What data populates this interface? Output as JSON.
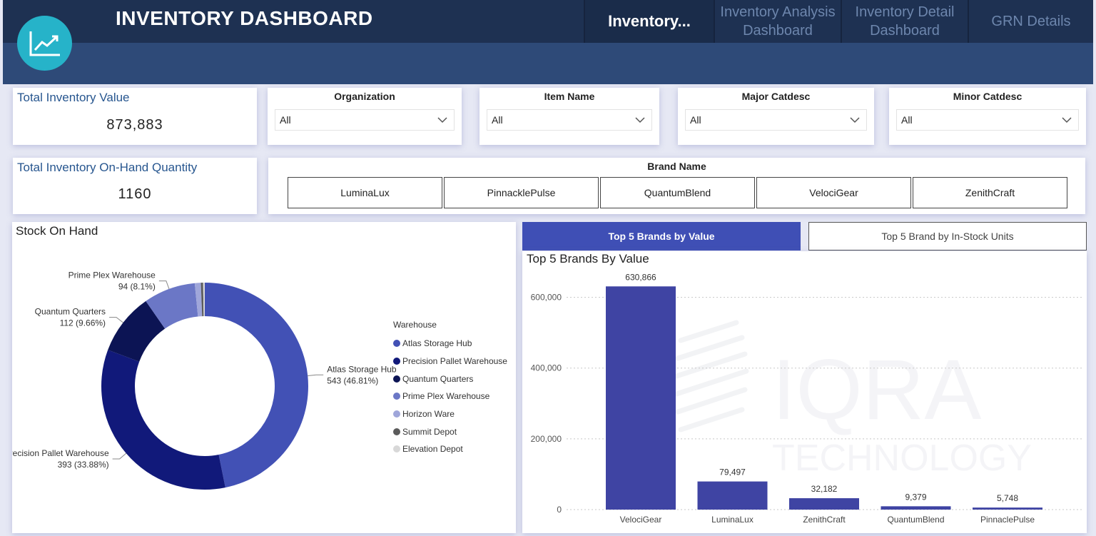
{
  "header": {
    "title": "INVENTORY DASHBOARD",
    "nav": {
      "active": "Inventory...",
      "item1_line1": "Inventory Analysis",
      "item1_line2": "Dashboard",
      "item2_line1": "Inventory Detail",
      "item2_line2": "Dashboard",
      "item3": "GRN Details"
    }
  },
  "kpis": {
    "total_value_label": "Total Inventory Value",
    "total_value": "873,883",
    "on_hand_label": "Total Inventory On-Hand Quantity",
    "on_hand": "1160"
  },
  "slicers": {
    "organization": {
      "title": "Organization",
      "value": "All"
    },
    "item_name": {
      "title": "Item Name",
      "value": "All"
    },
    "major_catdesc": {
      "title": "Major Catdesc",
      "value": "All"
    },
    "minor_catdesc": {
      "title": "Minor Catdesc",
      "value": "All"
    }
  },
  "brand_slicer": {
    "title": "Brand Name",
    "brands": [
      "LuminaLux",
      "PinnacklePulse",
      "QuantumBlend",
      "VelociGear",
      "ZenithCraft"
    ]
  },
  "toggle_tabs": {
    "active": "Top 5 Brands by Value",
    "inactive": "Top 5 Brand by In-Stock Units"
  },
  "watermark": {
    "line1": "IQRA",
    "line2": "TECHNOLOGY"
  },
  "colors": {
    "header_dark": "#1e3152",
    "header_light": "#2e4a78",
    "accent": "#3f4fb5",
    "logo": "#26b3c9"
  },
  "chart_data": [
    {
      "type": "pie",
      "title": "Stock On Hand",
      "legend_title": "Warehouse",
      "legend_position": "right",
      "categories": [
        "Atlas Storage Hub",
        "Precision Pallet Warehouse",
        "Quantum Quarters",
        "Prime Plex Warehouse",
        "Horizon Ware",
        "Summit Depot",
        "Elevation Depot"
      ],
      "values": [
        543,
        393,
        112,
        94,
        11,
        4,
        3
      ],
      "colors": [
        "#4251b5",
        "#11197a",
        "#0c1454",
        "#6b77c6",
        "#9fa6da",
        "#5b5b5b",
        "#d8d8d8"
      ],
      "data_labels": [
        {
          "name": "Atlas Storage Hub",
          "value": "543 (46.81%)"
        },
        {
          "name": "Precision Pallet Warehouse",
          "value": "393 (33.88%)"
        },
        {
          "name": "Quantum Quarters",
          "value": "112 (9.66%)"
        },
        {
          "name": "Prime Plex Warehouse",
          "value": "94 (8.1%)"
        }
      ]
    },
    {
      "type": "bar",
      "title": "Top 5 Brands By Value",
      "categories": [
        "VelociGear",
        "LuminaLux",
        "ZenithCraft",
        "QuantumBlend",
        "PinnaclePulse"
      ],
      "values": [
        630866,
        79497,
        32182,
        9379,
        5748
      ],
      "value_labels": [
        "630,866",
        "79,497",
        "32,182",
        "9,379",
        "5,748"
      ],
      "ylim": [
        0,
        700000
      ],
      "yticks": [
        0,
        200000,
        400000,
        600000
      ],
      "ytick_labels": [
        "0",
        "200,000",
        "400,000",
        "600,000"
      ],
      "grid": true,
      "color": "#3f44a3"
    }
  ]
}
